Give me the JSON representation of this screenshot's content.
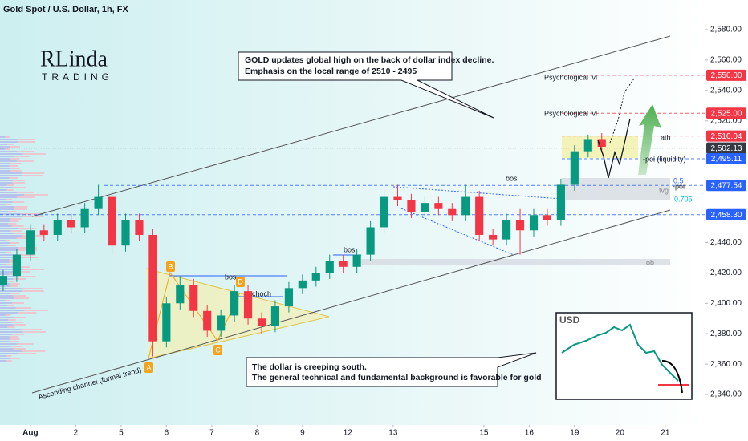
{
  "chart_data": {
    "type": "candlestick",
    "title": "Gold Spot / U.S. Dollar, 1h, FX",
    "x": [
      -0.6,
      -0.3,
      0,
      0.3,
      0.6,
      0.9,
      1.2,
      1.5,
      1.8,
      2.1,
      2.4,
      2.7,
      3.0,
      3.3,
      3.6,
      3.9,
      4.2,
      4.5,
      4.8,
      5.1,
      5.4,
      5.7,
      6.0,
      6.3,
      6.6,
      6.9,
      7.2,
      7.5,
      7.8,
      8.1,
      8.4,
      8.7,
      9.0,
      9.3,
      9.6,
      9.9,
      10.2,
      10.5,
      10.8,
      11.1,
      11.4,
      11.7,
      12.0,
      12.3,
      12.6
    ],
    "open": [
      2412,
      2418,
      2432,
      2448,
      2445,
      2455,
      2450,
      2462,
      2470,
      2438,
      2455,
      2445,
      2375,
      2400,
      2412,
      2395,
      2382,
      2392,
      2408,
      2390,
      2385,
      2398,
      2410,
      2415,
      2420,
      2428,
      2424,
      2432,
      2450,
      2470,
      2468,
      2460,
      2466,
      2462,
      2458,
      2470,
      2445,
      2442,
      2455,
      2448,
      2458,
      2455,
      2478,
      2500,
      2508
    ],
    "high": [
      2422,
      2436,
      2452,
      2452,
      2459,
      2459,
      2466,
      2478,
      2474,
      2459,
      2459,
      2449,
      2404,
      2418,
      2416,
      2399,
      2396,
      2412,
      2412,
      2394,
      2402,
      2414,
      2419,
      2424,
      2432,
      2432,
      2436,
      2454,
      2474,
      2478,
      2472,
      2470,
      2470,
      2466,
      2478,
      2474,
      2449,
      2459,
      2462,
      2462,
      2462,
      2482,
      2504,
      2511,
      2512
    ],
    "low": [
      2408,
      2414,
      2428,
      2441,
      2441,
      2446,
      2446,
      2458,
      2432,
      2434,
      2441,
      2365,
      2371,
      2396,
      2391,
      2378,
      2378,
      2388,
      2386,
      2380,
      2381,
      2394,
      2406,
      2411,
      2416,
      2420,
      2420,
      2428,
      2446,
      2464,
      2456,
      2456,
      2458,
      2454,
      2454,
      2441,
      2438,
      2438,
      2432,
      2444,
      2451,
      2451,
      2474,
      2496,
      2499
    ],
    "close": [
      2418,
      2432,
      2448,
      2445,
      2455,
      2450,
      2462,
      2470,
      2438,
      2455,
      2445,
      2375,
      2400,
      2412,
      2395,
      2382,
      2392,
      2408,
      2390,
      2385,
      2398,
      2410,
      2415,
      2420,
      2428,
      2424,
      2432,
      2450,
      2470,
      2468,
      2460,
      2466,
      2462,
      2458,
      2470,
      2445,
      2442,
      2455,
      2448,
      2458,
      2455,
      2478,
      2500,
      2508,
      2503
    ],
    "up_color": "#089981",
    "down_color": "#f23645",
    "xlim": [
      -0.67,
      14.87
    ],
    "xticks": [
      {
        "value": 0,
        "label": "Aug"
      },
      {
        "value": 1,
        "label": "2"
      },
      {
        "value": 2,
        "label": "5"
      },
      {
        "value": 3,
        "label": "6"
      },
      {
        "value": 4,
        "label": "7"
      },
      {
        "value": 5,
        "label": "8"
      },
      {
        "value": 6,
        "label": "9"
      },
      {
        "value": 7,
        "label": "12"
      },
      {
        "value": 8,
        "label": "13"
      },
      {
        "value": 10,
        "label": "15"
      },
      {
        "value": 11,
        "label": "16"
      },
      {
        "value": 12,
        "label": "19"
      },
      {
        "value": 13,
        "label": "20"
      },
      {
        "value": 14,
        "label": "21"
      }
    ],
    "ylim": [
      2330,
      2595
    ],
    "yticks": [
      {
        "value": 2340,
        "label": "2,340.00"
      },
      {
        "value": 2360,
        "label": "2,360.00"
      },
      {
        "value": 2380,
        "label": "2,380.00"
      },
      {
        "value": 2400,
        "label": "2,400.00"
      },
      {
        "value": 2420,
        "label": "2,420.00"
      },
      {
        "value": 2440,
        "label": "2,440.00"
      },
      {
        "value": 2520,
        "label": "2,520.00"
      },
      {
        "value": 2540,
        "label": "2,540.00"
      },
      {
        "value": 2560,
        "label": "2,560.00"
      },
      {
        "value": 2580,
        "label": "2,580.00"
      }
    ],
    "price_levels": [
      {
        "value": 2550,
        "label": "2,550.00",
        "color": "#f23645"
      },
      {
        "value": 2525,
        "label": "2,525.00",
        "color": "#f23645"
      },
      {
        "value": 2510.04,
        "label": "2,510.04",
        "color": "#f23645"
      },
      {
        "value": 2502.13,
        "label": "2,502.13",
        "color": "#363a45"
      },
      {
        "value": 2495.11,
        "label": "2,495.11",
        "color": "#2962ff"
      },
      {
        "value": 2477.54,
        "label": "2,477.54",
        "color": "#2962ff"
      },
      {
        "value": 2458.3,
        "label": "2,458.30",
        "color": "#2962ff"
      }
    ],
    "annotations": {
      "note_top": [
        "GOLD updates global high on the back of dollar index decline.",
        "Emphasis on the local range of 2510 - 2495"
      ],
      "note_bottom": [
        "The dollar is creeping south.",
        "The general technical and fundamental background is favorable for gold"
      ],
      "psychological": [
        "Psychological lvl",
        "Psychological lvl"
      ],
      "labels": [
        "ath",
        "-poi (liquidity)",
        "0.5",
        "-poi",
        "0.705",
        "fvg",
        "bos",
        "bos",
        "bos",
        "choch",
        "ob",
        "Ascending channel (formal trend)"
      ],
      "points": [
        "A",
        "B",
        "C",
        "D"
      ]
    },
    "logo": [
      "RLinda",
      "TRADING"
    ],
    "inset_title": "USD"
  }
}
